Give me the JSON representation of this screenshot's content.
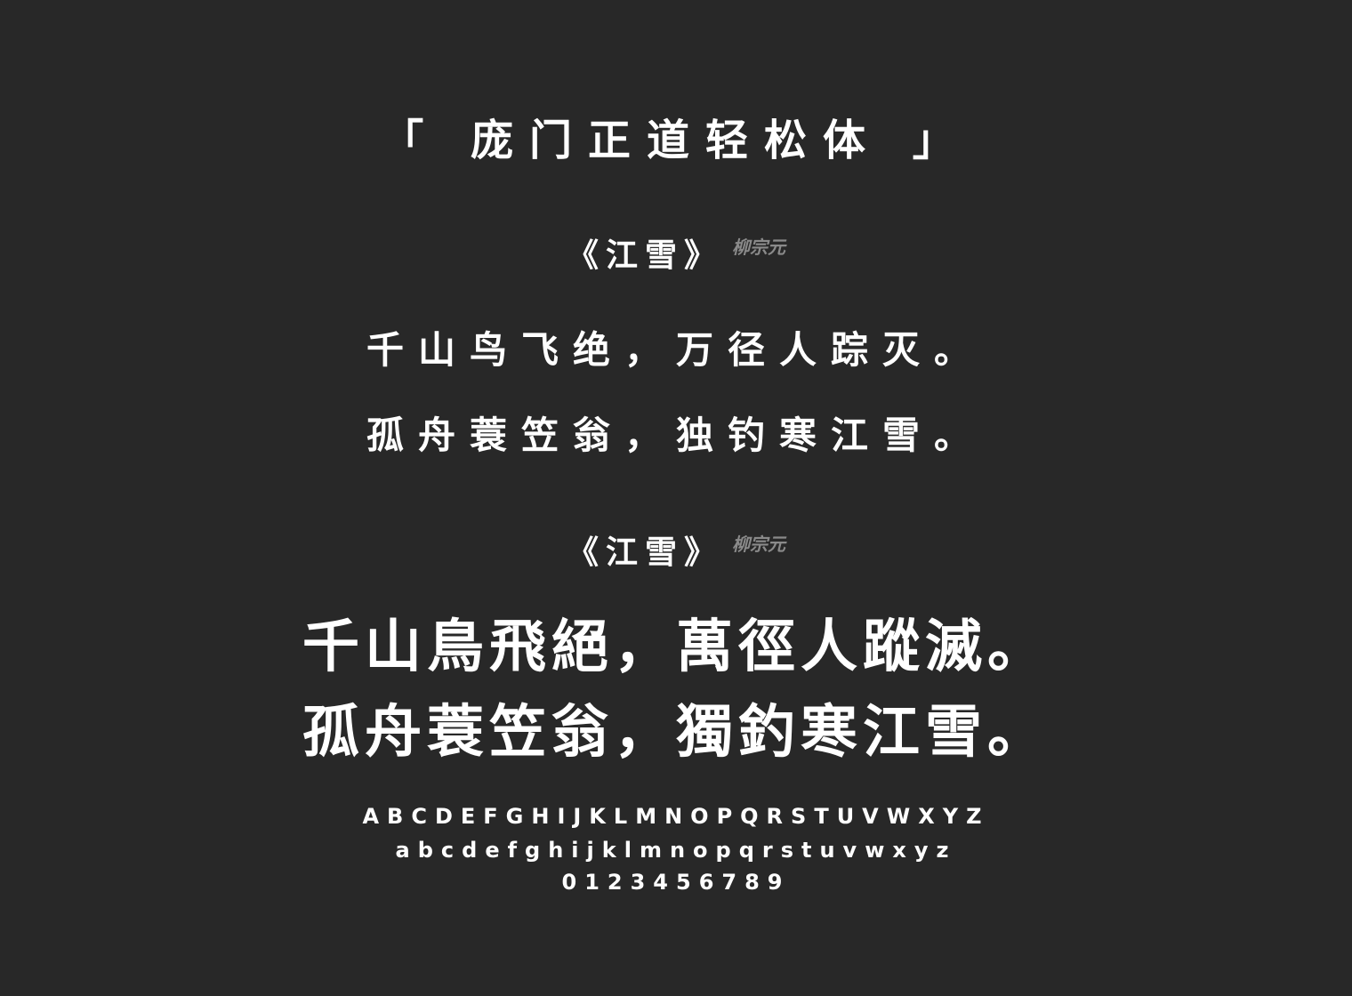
{
  "title": "「 庞门正道轻松体 」",
  "poem_simplified": {
    "name": "《江雪》",
    "author": "柳宗元",
    "lines": [
      "千山鸟飞绝，万径人踪灭。",
      "孤舟蓑笠翁，独钓寒江雪。"
    ]
  },
  "poem_traditional": {
    "name": "《江雪》",
    "author": "柳宗元",
    "lines": [
      "千山鳥飛絕，萬徑人蹤滅。",
      "孤舟蓑笠翁，獨釣寒江雪。"
    ]
  },
  "alphabet": {
    "upper": "ABCDEFGHIJKLMNOPQRSTUVWXYZ",
    "lower": "abcdefghijklmnopqrstuvwxyz",
    "digits": "0123456789"
  }
}
